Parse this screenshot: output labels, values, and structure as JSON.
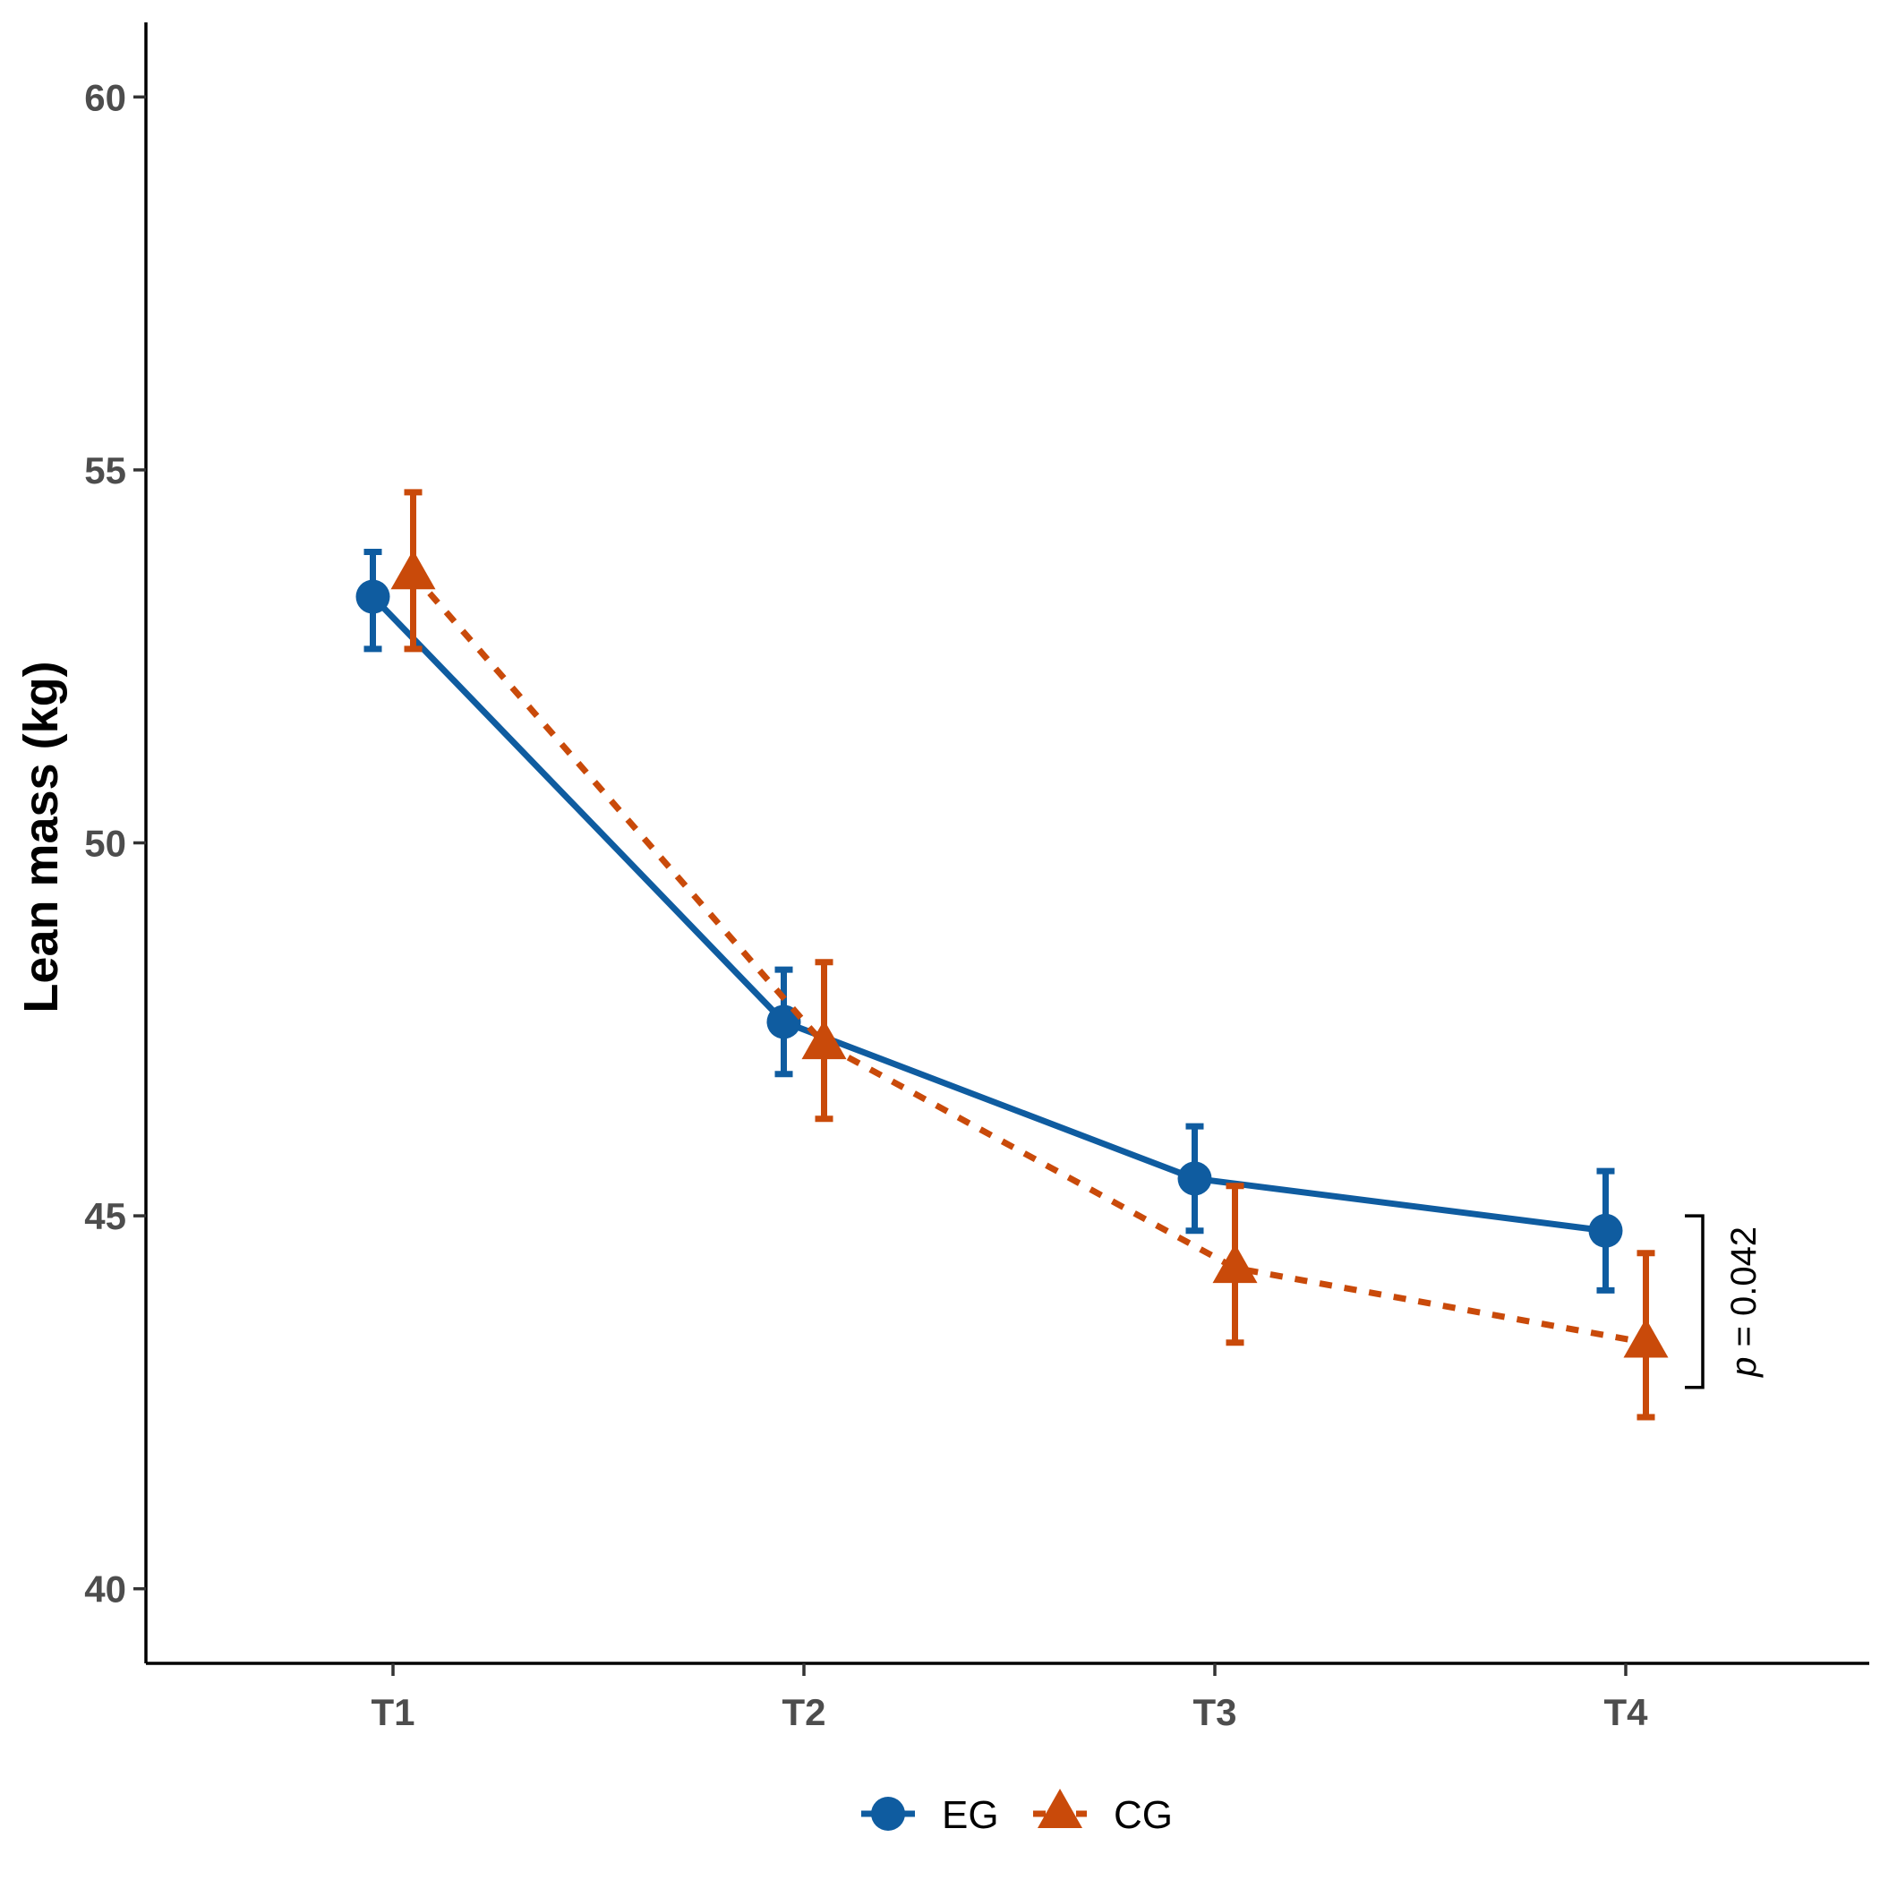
{
  "chart_data": {
    "type": "line",
    "title": "",
    "xlabel": "",
    "ylabel": "Lean mass (kg)",
    "categories": [
      "T1",
      "T2",
      "T3",
      "T4"
    ],
    "ylim": [
      39,
      61
    ],
    "yticks": [
      40,
      45,
      50,
      55,
      60
    ],
    "grid": false,
    "legend_position": "bottom",
    "series": [
      {
        "name": "EG",
        "marker": "circle",
        "line_style": "solid",
        "color": "#0F5CA0",
        "values": [
          53.3,
          47.6,
          45.5,
          44.8
        ],
        "error_low": [
          52.6,
          46.9,
          44.8,
          44.0
        ],
        "error_high": [
          53.9,
          48.3,
          46.2,
          45.6
        ]
      },
      {
        "name": "CG",
        "marker": "triangle",
        "line_style": "dashed",
        "color": "#C94A0A",
        "values": [
          53.6,
          47.3,
          44.3,
          43.3
        ],
        "error_low": [
          52.6,
          46.3,
          43.3,
          42.3
        ],
        "error_high": [
          54.7,
          48.4,
          45.4,
          44.5
        ]
      }
    ],
    "annotations": [
      {
        "text_prefix": "p",
        "text_value": " = 0.042",
        "bracket_from": 45.0,
        "bracket_to": 42.7,
        "category": "T4"
      }
    ]
  }
}
